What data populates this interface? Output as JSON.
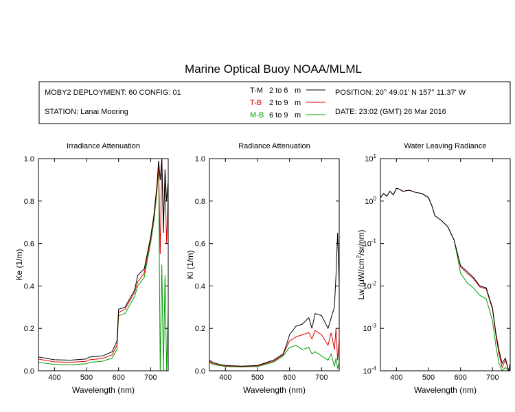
{
  "title": "Marine Optical Buoy NOAA/MLML",
  "info": {
    "deployment": "MOBY2 DEPLOYMENT: 60 CONFIG: 01",
    "station": "STATION: Lanai Mooring",
    "position": "POSITION: 20° 49.01' N   157° 11.37' W",
    "date": "DATE: 23:02 (GMT) 26 Mar 2016"
  },
  "colors": {
    "tm": "#000000",
    "tb": "#e00000",
    "mb": "#00a000"
  },
  "chart_data": [
    {
      "type": "line",
      "title": "Irradiance Attenuation",
      "xlabel": "Wavelength (nm)",
      "ylabel": "Ke  (1/m)",
      "xlim": [
        350,
        755
      ],
      "ylim": [
        0,
        1.0
      ],
      "xticks": [
        400,
        500,
        600,
        700
      ],
      "yticks": [
        "0.0",
        "0.2",
        "0.4",
        "0.6",
        "0.8",
        "1.0"
      ],
      "series": [
        {
          "name": "T-M",
          "x": [
            350,
            400,
            450,
            500,
            510,
            550,
            580,
            595,
            600,
            620,
            650,
            660,
            680,
            700,
            710,
            720,
            725,
            730,
            735,
            740,
            745,
            750,
            755
          ],
          "y": [
            0.065,
            0.052,
            0.05,
            0.056,
            0.065,
            0.07,
            0.09,
            0.14,
            0.29,
            0.3,
            0.38,
            0.45,
            0.48,
            0.63,
            0.73,
            0.88,
            0.99,
            0.9,
            1.0,
            0.65,
            0.95,
            0.8,
            0.9
          ]
        },
        {
          "name": "T-B",
          "x": [
            350,
            400,
            450,
            500,
            510,
            550,
            580,
            595,
            600,
            620,
            650,
            660,
            680,
            700,
            710,
            720,
            725,
            730,
            735,
            740,
            745,
            750,
            755
          ],
          "y": [
            0.055,
            0.042,
            0.04,
            0.045,
            0.052,
            0.058,
            0.075,
            0.12,
            0.275,
            0.29,
            0.37,
            0.42,
            0.46,
            0.62,
            0.72,
            0.87,
            0.98,
            0.55,
            1.0,
            0.7,
            0.9,
            0.6,
            0.85
          ]
        },
        {
          "name": "M-B",
          "x": [
            350,
            400,
            450,
            500,
            510,
            550,
            580,
            595,
            600,
            620,
            650,
            660,
            680,
            700,
            710,
            720,
            725,
            730,
            735,
            740,
            745,
            750,
            755
          ],
          "y": [
            0.04,
            0.03,
            0.028,
            0.033,
            0.04,
            0.045,
            0.06,
            0.1,
            0.26,
            0.27,
            0.35,
            0.4,
            0.44,
            0.6,
            0.7,
            0.85,
            0.97,
            0.0,
            0.5,
            0.0,
            0.45,
            0.0,
            0.3
          ]
        }
      ]
    },
    {
      "type": "line",
      "title": "Radiance Attenuation",
      "xlabel": "Wavelength (nm)",
      "ylabel": "Kl  (1/m)",
      "xlim": [
        350,
        755
      ],
      "ylim": [
        0,
        1.0
      ],
      "xticks": [
        400,
        500,
        600,
        700
      ],
      "yticks": [
        "0.0",
        "0.2",
        "0.4",
        "0.6",
        "0.8",
        "1.0"
      ],
      "series": [
        {
          "name": "T-M",
          "x": [
            350,
            360,
            380,
            400,
            450,
            500,
            550,
            580,
            590,
            600,
            620,
            640,
            660,
            670,
            680,
            700,
            720,
            730,
            740,
            745,
            750,
            755
          ],
          "y": [
            0.05,
            0.04,
            0.03,
            0.025,
            0.022,
            0.025,
            0.05,
            0.08,
            0.12,
            0.17,
            0.21,
            0.22,
            0.25,
            0.2,
            0.27,
            0.26,
            0.2,
            0.25,
            0.3,
            0.45,
            0.65,
            0.4
          ]
        },
        {
          "name": "T-B",
          "x": [
            350,
            360,
            380,
            400,
            450,
            500,
            550,
            580,
            590,
            600,
            620,
            640,
            660,
            670,
            680,
            700,
            720,
            730,
            740,
            745,
            750,
            755
          ],
          "y": [
            0.045,
            0.035,
            0.028,
            0.023,
            0.02,
            0.023,
            0.045,
            0.075,
            0.11,
            0.14,
            0.16,
            0.17,
            0.18,
            0.15,
            0.19,
            0.17,
            0.12,
            0.18,
            0.1,
            0.2,
            0.05,
            0.15
          ]
        },
        {
          "name": "M-B",
          "x": [
            350,
            360,
            380,
            400,
            450,
            500,
            550,
            580,
            590,
            600,
            620,
            640,
            660,
            670,
            680,
            700,
            720,
            730,
            740,
            745,
            750,
            755
          ],
          "y": [
            0.04,
            0.03,
            0.025,
            0.02,
            0.018,
            0.02,
            0.04,
            0.07,
            0.09,
            0.11,
            0.12,
            0.1,
            0.11,
            0.08,
            0.09,
            0.07,
            0.05,
            0.08,
            0.02,
            0.06,
            0.01,
            0.04
          ]
        }
      ]
    },
    {
      "type": "line",
      "title": "Water Leaving Radiance",
      "xlabel": "Wavelength (nm)",
      "ylabel": "Lw  (µW/cm²/sr/nm)",
      "ylabel_parts": [
        "Lw  (",
        "µ",
        "W/cm",
        "2",
        "/sr/nm)"
      ],
      "xlim": [
        350,
        755
      ],
      "log_y": true,
      "ylim_exp": [
        -4,
        1
      ],
      "xticks": [
        400,
        500,
        600,
        700
      ],
      "yticks": [
        "10",
        "10",
        "10",
        "10",
        "10",
        "10"
      ],
      "ytick_exps": [
        "-4",
        "-3",
        "-2",
        "-1",
        "0",
        "1"
      ],
      "series": [
        {
          "name": "T-M",
          "x": [
            350,
            360,
            370,
            380,
            390,
            400,
            410,
            420,
            440,
            460,
            480,
            500,
            510,
            520,
            540,
            560,
            580,
            590,
            600,
            620,
            640,
            660,
            680,
            700,
            710,
            720,
            730,
            740,
            750,
            755
          ],
          "y": [
            1.2,
            1.5,
            1.3,
            1.7,
            1.4,
            2.0,
            1.9,
            1.7,
            1.8,
            1.6,
            1.5,
            1.2,
            0.8,
            0.45,
            0.35,
            0.25,
            0.12,
            0.06,
            0.03,
            0.022,
            0.016,
            0.01,
            0.009,
            0.003,
            0.0008,
            0.0003,
            0.00015,
            0.0002,
            0.0001,
            0.00015
          ]
        },
        {
          "name": "T-B",
          "x": [
            350,
            360,
            370,
            380,
            390,
            400,
            410,
            420,
            440,
            460,
            480,
            500,
            510,
            520,
            540,
            560,
            580,
            590,
            600,
            620,
            640,
            660,
            680,
            700,
            710,
            720,
            730,
            740,
            750,
            755
          ],
          "y": [
            1.2,
            1.5,
            1.3,
            1.7,
            1.4,
            2.0,
            1.9,
            1.7,
            1.8,
            1.6,
            1.5,
            1.2,
            0.8,
            0.45,
            0.35,
            0.25,
            0.12,
            0.06,
            0.028,
            0.02,
            0.015,
            0.0095,
            0.0085,
            0.0028,
            0.0007,
            0.00025,
            0.00012,
            0.00018,
            0.0001,
            0.00012
          ]
        },
        {
          "name": "M-B",
          "x": [
            350,
            360,
            370,
            380,
            390,
            400,
            410,
            420,
            440,
            460,
            480,
            500,
            510,
            520,
            540,
            560,
            580,
            590,
            600,
            620,
            640,
            660,
            680,
            700,
            710,
            720,
            730,
            740,
            750,
            755
          ],
          "y": [
            1.2,
            1.5,
            1.3,
            1.7,
            1.4,
            2.0,
            1.9,
            1.7,
            1.8,
            1.6,
            1.5,
            1.2,
            0.8,
            0.45,
            0.35,
            0.25,
            0.12,
            0.05,
            0.02,
            0.012,
            0.009,
            0.006,
            0.005,
            0.0015,
            0.0004,
            0.00015,
            0.0001,
            0.00012,
            0.0001,
            0.0001
          ]
        }
      ]
    }
  ],
  "legend": [
    {
      "code": "T-M",
      "range": "2 to 6",
      "unit": "m",
      "color": "#000000"
    },
    {
      "code": "T-B",
      "range": "2 to 9",
      "unit": "m",
      "color": "#e00000"
    },
    {
      "code": "M-B",
      "range": "6 to 9",
      "unit": "m",
      "color": "#00a000"
    }
  ]
}
